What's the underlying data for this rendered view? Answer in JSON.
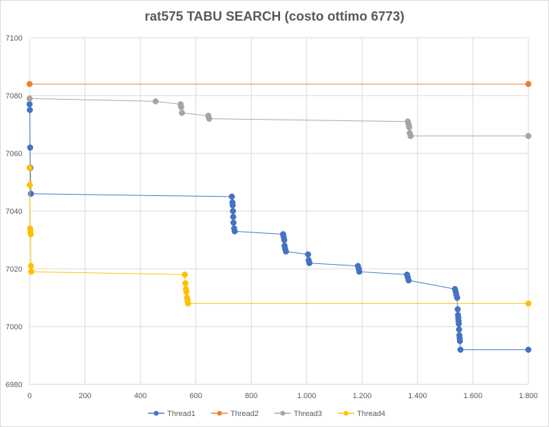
{
  "chart_data": {
    "type": "line",
    "title": "rat575 TABU SEARCH (costo ottimo 6773)",
    "xlabel": "",
    "ylabel": "",
    "xlim": [
      0,
      1800
    ],
    "ylim": [
      6980,
      7100
    ],
    "x_ticks": [
      0,
      200,
      400,
      600,
      800,
      1000,
      1200,
      1400,
      1600,
      1800
    ],
    "x_tick_labels": [
      "0",
      "200",
      "400",
      "600",
      "800",
      "1.000",
      "1.200",
      "1.400",
      "1.600",
      "1.800"
    ],
    "y_ticks": [
      6980,
      7000,
      7020,
      7040,
      7060,
      7080,
      7100
    ],
    "y_tick_labels": [
      "6980",
      "7000",
      "7020",
      "7040",
      "7060",
      "7080",
      "7100"
    ],
    "grid": true,
    "legend_position": "bottom",
    "series": [
      {
        "name": "Thread1",
        "color": "#4472c4",
        "points": [
          [
            0,
            7077
          ],
          [
            1,
            7075
          ],
          [
            2,
            7062
          ],
          [
            3,
            7055
          ],
          [
            5,
            7046
          ],
          [
            730,
            7045
          ],
          [
            732,
            7043
          ],
          [
            733,
            7042
          ],
          [
            734,
            7040
          ],
          [
            735,
            7038
          ],
          [
            736,
            7036
          ],
          [
            738,
            7034
          ],
          [
            740,
            7033
          ],
          [
            915,
            7032
          ],
          [
            917,
            7031
          ],
          [
            919,
            7030
          ],
          [
            920,
            7028
          ],
          [
            922,
            7027
          ],
          [
            925,
            7026
          ],
          [
            1005,
            7025
          ],
          [
            1007,
            7023
          ],
          [
            1010,
            7022
          ],
          [
            1185,
            7021
          ],
          [
            1188,
            7020
          ],
          [
            1190,
            7019
          ],
          [
            1362,
            7018
          ],
          [
            1365,
            7017
          ],
          [
            1368,
            7016
          ],
          [
            1535,
            7013
          ],
          [
            1538,
            7012
          ],
          [
            1540,
            7011
          ],
          [
            1543,
            7010
          ],
          [
            1545,
            7006
          ],
          [
            1546,
            7004
          ],
          [
            1547,
            7003
          ],
          [
            1548,
            7002
          ],
          [
            1549,
            7001
          ],
          [
            1550,
            6999
          ],
          [
            1551,
            6997
          ],
          [
            1552,
            6996
          ],
          [
            1553,
            6995
          ],
          [
            1555,
            6992
          ],
          [
            1800,
            6992
          ]
        ]
      },
      {
        "name": "Thread2",
        "color": "#ed7d31",
        "points": [
          [
            0,
            7084
          ],
          [
            1800,
            7084
          ]
        ]
      },
      {
        "name": "Thread3",
        "color": "#a5a5a5",
        "points": [
          [
            0,
            7079
          ],
          [
            455,
            7078
          ],
          [
            545,
            7077
          ],
          [
            547,
            7076
          ],
          [
            550,
            7074
          ],
          [
            645,
            7073
          ],
          [
            648,
            7072
          ],
          [
            1365,
            7071
          ],
          [
            1368,
            7070
          ],
          [
            1370,
            7069
          ],
          [
            1372,
            7067
          ],
          [
            1375,
            7066
          ],
          [
            1800,
            7066
          ]
        ]
      },
      {
        "name": "Thread4",
        "color": "#ffc000",
        "points": [
          [
            0,
            7055
          ],
          [
            1,
            7049
          ],
          [
            2,
            7034
          ],
          [
            3,
            7033
          ],
          [
            4,
            7032
          ],
          [
            5,
            7021
          ],
          [
            6,
            7019
          ],
          [
            560,
            7018
          ],
          [
            562,
            7015
          ],
          [
            564,
            7013
          ],
          [
            566,
            7012
          ],
          [
            568,
            7010
          ],
          [
            570,
            7009
          ],
          [
            572,
            7008
          ],
          [
            1800,
            7008
          ]
        ]
      }
    ]
  }
}
